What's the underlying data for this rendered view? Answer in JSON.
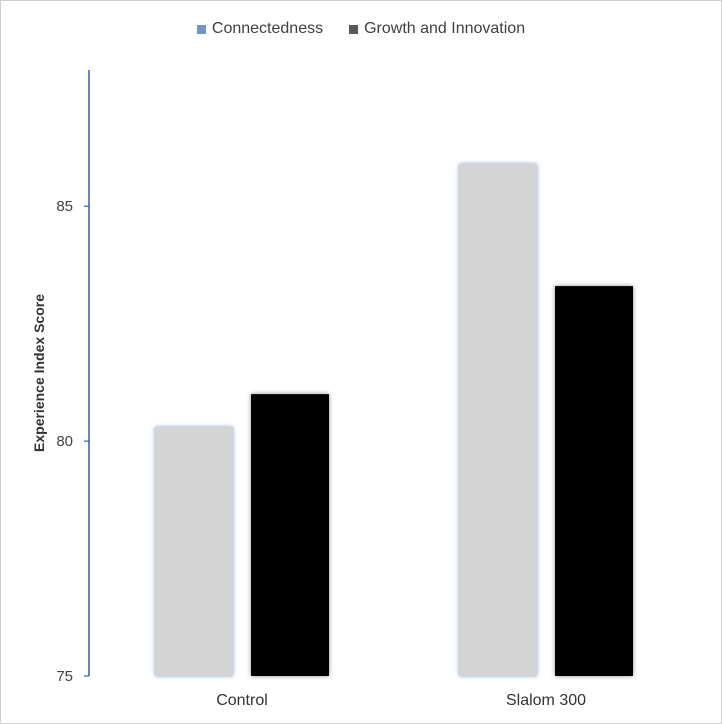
{
  "chart_data": {
    "type": "bar",
    "categories": [
      "Control",
      "Slalom 300"
    ],
    "series": [
      {
        "name": "Connectedness",
        "values": [
          80.3,
          85.9
        ],
        "fill": "#d4d4d4",
        "legend_color": "#6f94cc"
      },
      {
        "name": "Growth and Innovation",
        "values": [
          81.0,
          83.3
        ],
        "fill": "#000000",
        "legend_color": "#595959"
      }
    ],
    "ylabel": "Experience Index Score",
    "xlabel": "",
    "ylim": [
      75,
      87.9
    ],
    "yticks": [
      75,
      80,
      85
    ],
    "legend_position": "top-center",
    "axis_color": "#2f5fb3",
    "grid": false
  }
}
